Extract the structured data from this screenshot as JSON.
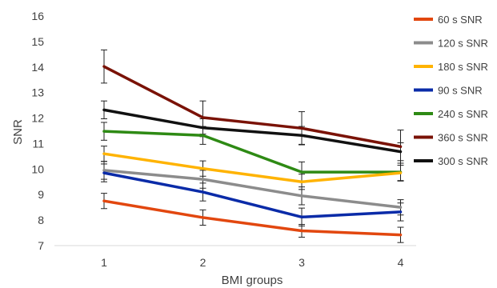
{
  "chart_data": {
    "type": "line",
    "xlabel": "BMI groups",
    "ylabel": "SNR",
    "categories": [
      "1",
      "2",
      "3",
      "4"
    ],
    "ylim": [
      7,
      16
    ],
    "yticks": [
      "7",
      "8",
      "9",
      "10",
      "11",
      "12",
      "13",
      "14",
      "15",
      "16"
    ],
    "grid": false,
    "legend_position": "right",
    "series": [
      {
        "name": "60 s SNR",
        "color": "#E2470F",
        "values": [
          8.75,
          8.1,
          7.58,
          7.42
        ],
        "errors": [
          0.3,
          0.3,
          0.25,
          0.3
        ]
      },
      {
        "name": "120 s SNR",
        "color": "#8C8C8C",
        "values": [
          9.95,
          9.6,
          8.95,
          8.5
        ],
        "errors": [
          0.35,
          0.35,
          0.35,
          0.3
        ]
      },
      {
        "name": "180 s SNR",
        "color": "#FFB300",
        "values": [
          10.6,
          10.02,
          9.5,
          9.85
        ],
        "errors": [
          0.3,
          0.3,
          0.3,
          0.3
        ]
      },
      {
        "name": "90 s SNR",
        "color": "#0A2BA8",
        "values": [
          9.85,
          9.1,
          8.12,
          8.32
        ],
        "errors": [
          0.35,
          0.35,
          0.35,
          0.35
        ]
      },
      {
        "name": "240 s SNR",
        "color": "#2E8A14",
        "values": [
          11.48,
          11.32,
          9.88,
          9.88
        ],
        "errors": [
          0.35,
          0.35,
          0.4,
          0.35
        ]
      },
      {
        "name": "360 s SNR",
        "color": "#7A1206",
        "values": [
          14.02,
          12.02,
          11.6,
          10.88
        ],
        "errors": [
          0.65,
          0.65,
          0.65,
          0.65
        ]
      },
      {
        "name": "300 s SNR",
        "color": "#111111",
        "values": [
          12.32,
          11.62,
          11.32,
          10.68
        ],
        "errors": [
          0.35,
          0.35,
          0.35,
          0.35
        ]
      }
    ],
    "draw_order": [
      6,
      5,
      4,
      2,
      1,
      3,
      0
    ]
  }
}
